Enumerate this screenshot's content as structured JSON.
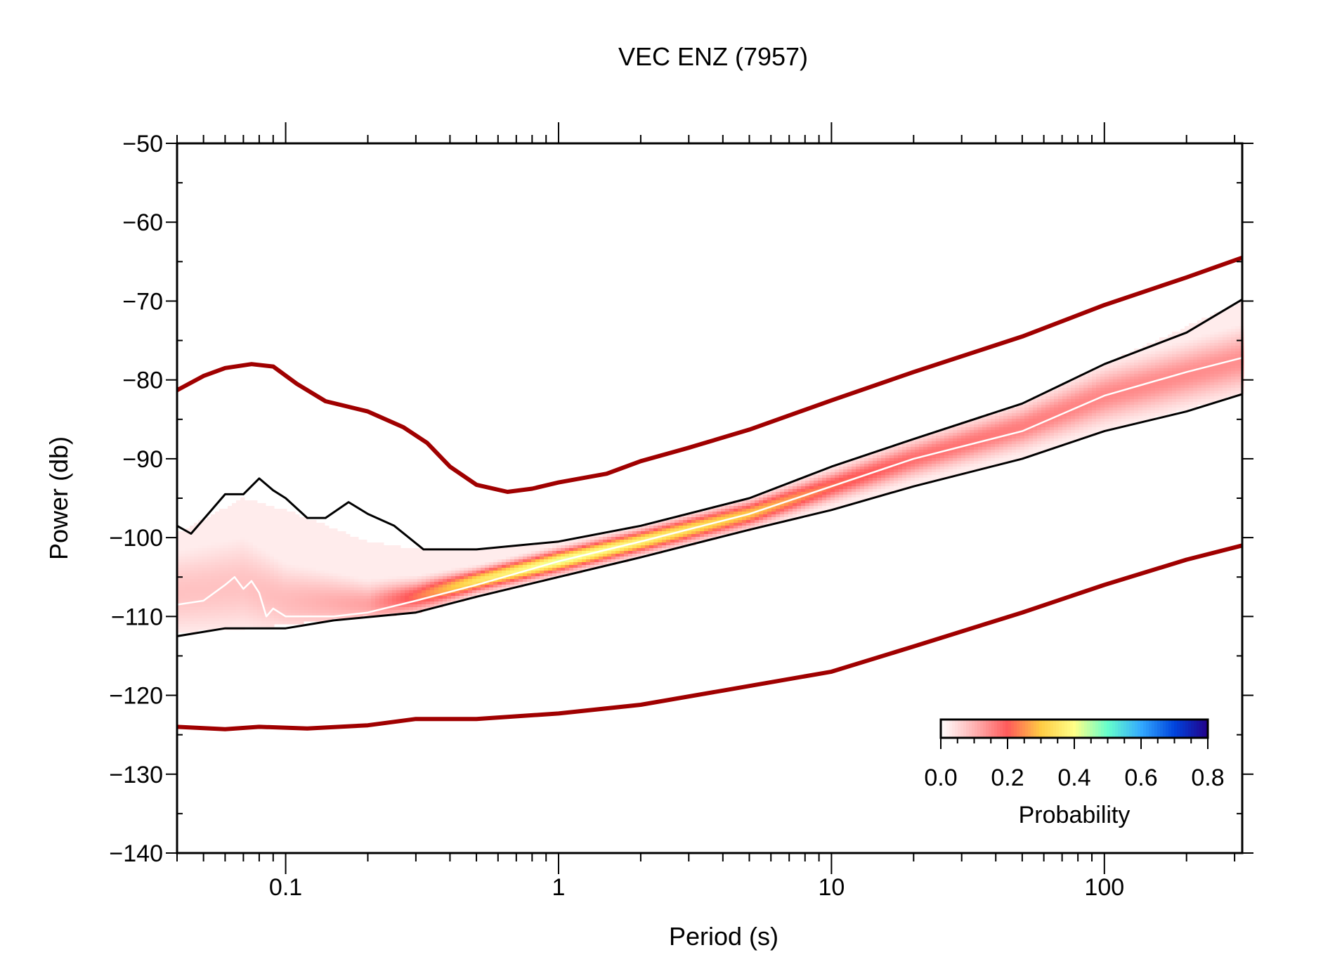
{
  "chart_data": {
    "type": "line",
    "title": "VEC ENZ (7957)",
    "xlabel": "Period (s)",
    "ylabel": "Power (db)",
    "x_scale": "log",
    "xlim": [
      0.04,
      320
    ],
    "ylim": [
      -140,
      -50
    ],
    "x_ticks": [
      0.1,
      1,
      10,
      100
    ],
    "x_tick_labels": [
      "0.1",
      "1",
      "10",
      "100"
    ],
    "y_ticks": [
      -50,
      -60,
      -70,
      -80,
      -90,
      -100,
      -110,
      -120,
      -130,
      -140
    ],
    "y_tick_labels": [
      "−50",
      "−60",
      "−70",
      "−80",
      "−90",
      "−100",
      "−110",
      "−120",
      "−130",
      "−140"
    ],
    "grid": false,
    "colorbar": {
      "label": "Probability",
      "tick_labels": [
        "0.0",
        "0.2",
        "0.4",
        "0.6",
        "0.8"
      ],
      "ticks": [
        0,
        0.2,
        0.4,
        0.6,
        0.8
      ],
      "range": [
        0,
        0.8
      ],
      "placement": "bottom-right",
      "colors": [
        "#ffffff",
        "#ffb3b3",
        "#ff5a5a",
        "#ffcc44",
        "#ffff88",
        "#66ffcc",
        "#33aaff",
        "#0044dd",
        "#220088"
      ]
    },
    "series": [
      {
        "role": "new-high-noise-model",
        "color": "#a00000",
        "points": [
          [
            0.04,
            -81.3
          ],
          [
            0.05,
            -79.5
          ],
          [
            0.06,
            -78.5
          ],
          [
            0.075,
            -78.0
          ],
          [
            0.09,
            -78.3
          ],
          [
            0.11,
            -80.5
          ],
          [
            0.14,
            -82.7
          ],
          [
            0.2,
            -84.0
          ],
          [
            0.27,
            -86.0
          ],
          [
            0.33,
            -88.0
          ],
          [
            0.4,
            -91.0
          ],
          [
            0.5,
            -93.3
          ],
          [
            0.65,
            -94.2
          ],
          [
            0.8,
            -93.8
          ],
          [
            1.0,
            -93.0
          ],
          [
            1.5,
            -91.9
          ],
          [
            2.0,
            -90.3
          ],
          [
            3.0,
            -88.6
          ],
          [
            5.0,
            -86.3
          ],
          [
            10.0,
            -82.6
          ],
          [
            20.0,
            -79.0
          ],
          [
            50.0,
            -74.5
          ],
          [
            100.0,
            -70.5
          ],
          [
            200.0,
            -67.0
          ],
          [
            320.0,
            -64.5
          ]
        ]
      },
      {
        "role": "new-low-noise-model",
        "color": "#a00000",
        "points": [
          [
            0.04,
            -124.0
          ],
          [
            0.06,
            -124.3
          ],
          [
            0.08,
            -124.0
          ],
          [
            0.12,
            -124.2
          ],
          [
            0.2,
            -123.8
          ],
          [
            0.3,
            -123.0
          ],
          [
            0.5,
            -123.0
          ],
          [
            1.0,
            -122.3
          ],
          [
            2.0,
            -121.2
          ],
          [
            4.0,
            -119.4
          ],
          [
            10.0,
            -117.0
          ],
          [
            20.0,
            -113.8
          ],
          [
            50.0,
            -109.5
          ],
          [
            100.0,
            -106.0
          ],
          [
            200.0,
            -102.8
          ],
          [
            320.0,
            -101.0
          ]
        ]
      },
      {
        "role": "upper-envelope",
        "color": "#000000",
        "points": [
          [
            0.04,
            -98.5
          ],
          [
            0.045,
            -99.5
          ],
          [
            0.052,
            -97.0
          ],
          [
            0.06,
            -94.5
          ],
          [
            0.07,
            -94.5
          ],
          [
            0.08,
            -92.5
          ],
          [
            0.09,
            -94.0
          ],
          [
            0.1,
            -95.0
          ],
          [
            0.12,
            -97.5
          ],
          [
            0.14,
            -97.5
          ],
          [
            0.17,
            -95.5
          ],
          [
            0.2,
            -97.0
          ],
          [
            0.25,
            -98.5
          ],
          [
            0.32,
            -101.5
          ],
          [
            0.5,
            -101.5
          ],
          [
            1.0,
            -100.5
          ],
          [
            2.0,
            -98.5
          ],
          [
            5.0,
            -95.0
          ],
          [
            10.0,
            -91.0
          ],
          [
            20.0,
            -87.5
          ],
          [
            50.0,
            -83.0
          ],
          [
            100.0,
            -78.0
          ],
          [
            200.0,
            -74.0
          ],
          [
            320.0,
            -69.8
          ]
        ]
      },
      {
        "role": "lower-envelope",
        "color": "#000000",
        "points": [
          [
            0.04,
            -112.5
          ],
          [
            0.06,
            -111.5
          ],
          [
            0.08,
            -111.5
          ],
          [
            0.1,
            -111.5
          ],
          [
            0.15,
            -110.5
          ],
          [
            0.3,
            -109.5
          ],
          [
            0.5,
            -107.5
          ],
          [
            1.0,
            -105.0
          ],
          [
            2.0,
            -102.5
          ],
          [
            5.0,
            -99.0
          ],
          [
            10.0,
            -96.5
          ],
          [
            20.0,
            -93.5
          ],
          [
            50.0,
            -90.0
          ],
          [
            100.0,
            -86.5
          ],
          [
            200.0,
            -84.0
          ],
          [
            320.0,
            -81.8
          ]
        ]
      },
      {
        "role": "mode",
        "color": "#ffffff",
        "points": [
          [
            0.04,
            -108.5
          ],
          [
            0.05,
            -108.0
          ],
          [
            0.06,
            -106.0
          ],
          [
            0.065,
            -105.0
          ],
          [
            0.07,
            -106.5
          ],
          [
            0.075,
            -105.5
          ],
          [
            0.08,
            -107.0
          ],
          [
            0.085,
            -110.0
          ],
          [
            0.09,
            -109.0
          ],
          [
            0.1,
            -110.0
          ],
          [
            0.15,
            -110.0
          ],
          [
            0.2,
            -109.5
          ],
          [
            0.3,
            -108.0
          ],
          [
            0.5,
            -106.0
          ],
          [
            1.0,
            -103.0
          ],
          [
            2.0,
            -100.5
          ],
          [
            5.0,
            -97.0
          ],
          [
            10.0,
            -93.5
          ],
          [
            20.0,
            -90.0
          ],
          [
            50.0,
            -86.5
          ],
          [
            100.0,
            -82.0
          ],
          [
            200.0,
            -79.0
          ],
          [
            320.0,
            -77.2
          ]
        ]
      }
    ],
    "density": {
      "colormap": "probability",
      "columns": [
        {
          "x": 0.04,
          "center": -107.0,
          "width": 3.5,
          "peak": 0.08,
          "lo": -112.0,
          "hi": -99.5
        },
        {
          "x": 0.07,
          "center": -106.0,
          "width": 4.0,
          "peak": 0.08,
          "lo": -111.5,
          "hi": -95.0
        },
        {
          "x": 0.1,
          "center": -108.0,
          "width": 3.0,
          "peak": 0.09,
          "lo": -111.0,
          "hi": -96.5
        },
        {
          "x": 0.2,
          "center": -108.5,
          "width": 1.8,
          "peak": 0.12,
          "lo": -110.0,
          "hi": -100.5
        },
        {
          "x": 0.3,
          "center": -107.5,
          "width": 1.3,
          "peak": 0.22,
          "lo": -109.5,
          "hi": -101.5
        },
        {
          "x": 0.5,
          "center": -105.5,
          "width": 0.9,
          "peak": 0.35,
          "lo": -107.5,
          "hi": -101.5
        },
        {
          "x": 1.0,
          "center": -103.0,
          "width": 0.9,
          "peak": 0.42,
          "lo": -105.0,
          "hi": -100.5
        },
        {
          "x": 2.0,
          "center": -100.5,
          "width": 0.9,
          "peak": 0.38,
          "lo": -102.5,
          "hi": -98.5
        },
        {
          "x": 5.0,
          "center": -97.0,
          "width": 1.0,
          "peak": 0.3,
          "lo": -99.0,
          "hi": -95.0
        },
        {
          "x": 10.0,
          "center": -93.5,
          "width": 1.2,
          "peak": 0.22,
          "lo": -96.5,
          "hi": -91.0
        },
        {
          "x": 20.0,
          "center": -90.0,
          "width": 1.5,
          "peak": 0.18,
          "lo": -93.5,
          "hi": -87.5
        },
        {
          "x": 50.0,
          "center": -86.0,
          "width": 1.8,
          "peak": 0.16,
          "lo": -90.0,
          "hi": -83.0
        },
        {
          "x": 100.0,
          "center": -82.0,
          "width": 2.2,
          "peak": 0.15,
          "lo": -86.5,
          "hi": -78.0
        },
        {
          "x": 320.0,
          "center": -77.5,
          "width": 2.5,
          "peak": 0.14,
          "lo": -81.8,
          "hi": -70.0
        }
      ]
    }
  }
}
